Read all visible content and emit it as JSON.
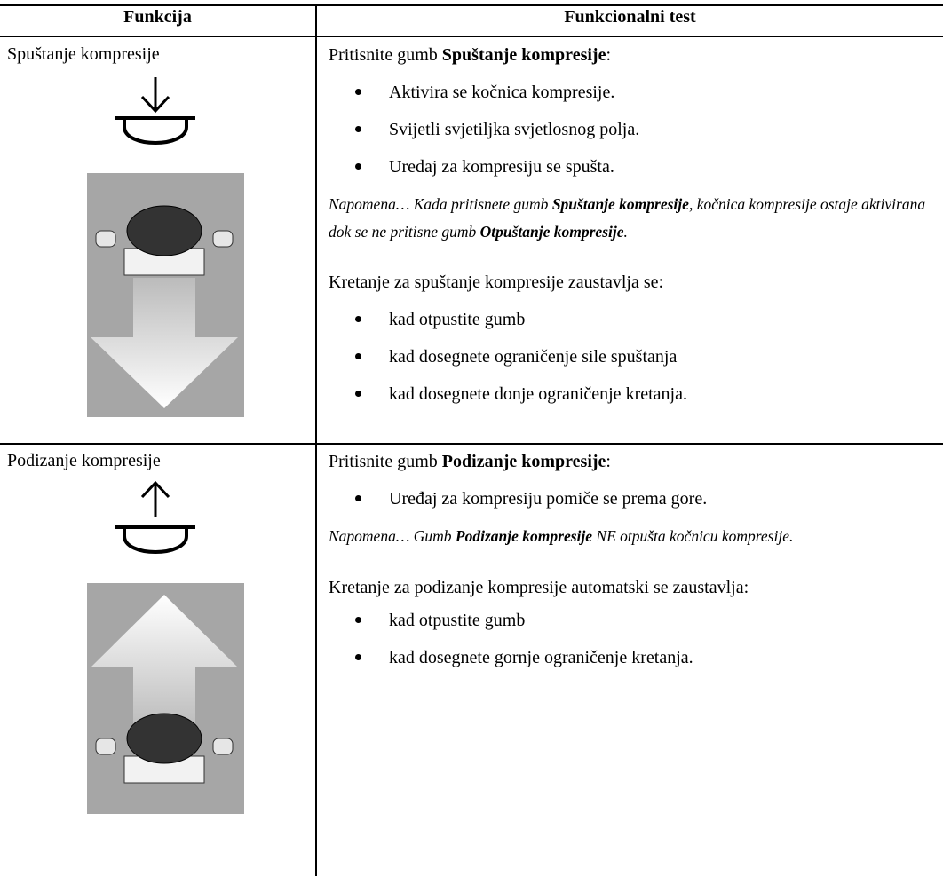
{
  "table": {
    "headers": [
      "Funkcija",
      "Funkcionalni test"
    ],
    "rows": [
      {
        "function": "Spuštanje kompresije",
        "test": {
          "intro": [
            "Pritisnite gumb ",
            "Spuštanje kompresije",
            ":"
          ],
          "bullets": [
            "Aktivira se kočnica kompresije.",
            "Svijetli svjetiljka svjetlosnog polja.",
            "Uređaj za kompresiju se spušta."
          ],
          "note": [
            "Napomena… Kada pritisnete gumb ",
            "Spuštanje kompresije",
            ", kočnica kompresije ostaje aktivirana dok se ne pritisne gumb ",
            "Otpuštanje kompresije",
            "."
          ],
          "stop": "Kretanje za spuštanje kompresije zaustavlja se:",
          "stop_bullets": [
            "kad otpustite gumb",
            "kad dosegnete ograničenje sile spuštanja",
            "kad dosegnete donje ograničenje kretanja."
          ]
        }
      },
      {
        "function": "Podizanje kompresije",
        "test": {
          "intro": [
            "Pritisnite gumb ",
            "Podizanje kompresije",
            ":"
          ],
          "bullets": [
            "Uređaj za kompresiju pomiče se prema gore."
          ],
          "note": [
            "Napomena… Gumb ",
            "Podizanje kompresije",
            " NE otpušta kočnicu kompresije."
          ],
          "stop": "Kretanje za podizanje kompresije automatski se zaustavlja:",
          "stop_bullets": [
            "kad otpustite gumb",
            "kad dosegnete gornje ograničenje kretanja."
          ]
        }
      }
    ]
  }
}
